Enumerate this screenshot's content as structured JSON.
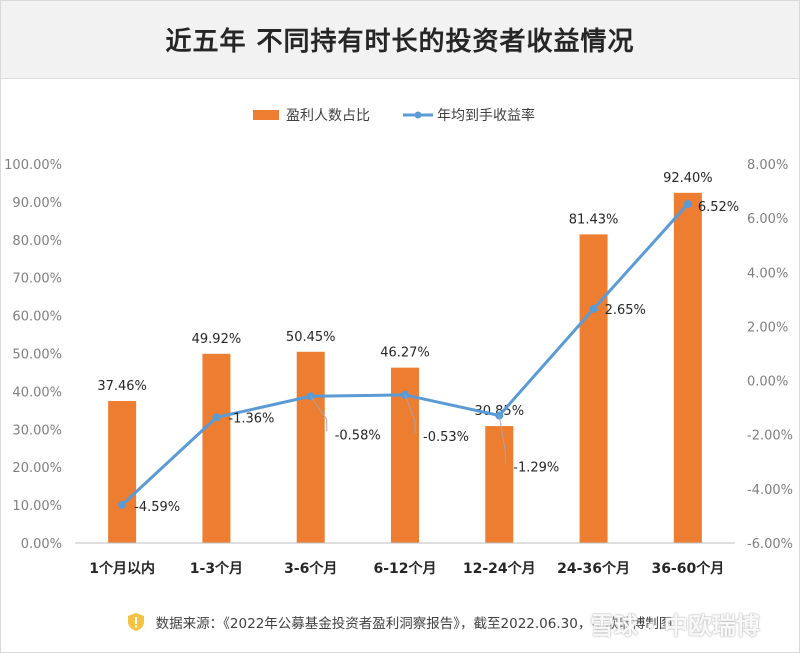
{
  "title": "近五年 不同持有时长的投资者收益情况",
  "footer": {
    "source_text": "数据来源：《2022年公募基金投资者盈利洞察报告》，截至2022.06.30，中欧瑞博制图",
    "watermark": "雪球 · 中欧瑞博",
    "icon": "shield-icon"
  },
  "chart_data": {
    "type": "bar",
    "categories": [
      "1个月以内",
      "1-3个月",
      "3-6个月",
      "6-12个月",
      "12-24个月",
      "24-36个月",
      "36-60个月"
    ],
    "series": [
      {
        "name": "盈利人数占比",
        "type": "bar",
        "axis": "left",
        "color": "#ED7D31",
        "values": [
          37.46,
          49.92,
          50.45,
          46.27,
          30.85,
          81.43,
          92.4
        ],
        "labels": [
          "37.46%",
          "49.92%",
          "50.45%",
          "46.27%",
          "30.85%",
          "81.43%",
          "92.40%"
        ]
      },
      {
        "name": "年均到手收益率",
        "type": "line",
        "axis": "right",
        "color": "#5B9BD5",
        "values": [
          -4.59,
          -1.36,
          -0.58,
          -0.53,
          -1.29,
          2.65,
          6.52
        ],
        "labels": [
          "-4.59%",
          "-1.36%",
          "-0.58%",
          "-0.53%",
          "-1.29%",
          "2.65%",
          "6.52%"
        ]
      }
    ],
    "left_axis": {
      "ylim": [
        0,
        100
      ],
      "ticks": [
        0,
        10,
        20,
        30,
        40,
        50,
        60,
        70,
        80,
        90,
        100
      ],
      "tick_labels": [
        "0.00%",
        "10.00%",
        "20.00%",
        "30.00%",
        "40.00%",
        "50.00%",
        "60.00%",
        "70.00%",
        "80.00%",
        "90.00%",
        "100.00%"
      ]
    },
    "right_axis": {
      "ylim": [
        -6,
        8
      ],
      "ticks": [
        -6,
        -4,
        -2,
        0,
        2,
        4,
        6,
        8
      ],
      "tick_labels": [
        "-6.00%",
        "-4.00%",
        "-2.00%",
        "0.00%",
        "2.00%",
        "4.00%",
        "6.00%",
        "8.00%"
      ]
    },
    "grid": false,
    "legend_position": "top-center"
  }
}
